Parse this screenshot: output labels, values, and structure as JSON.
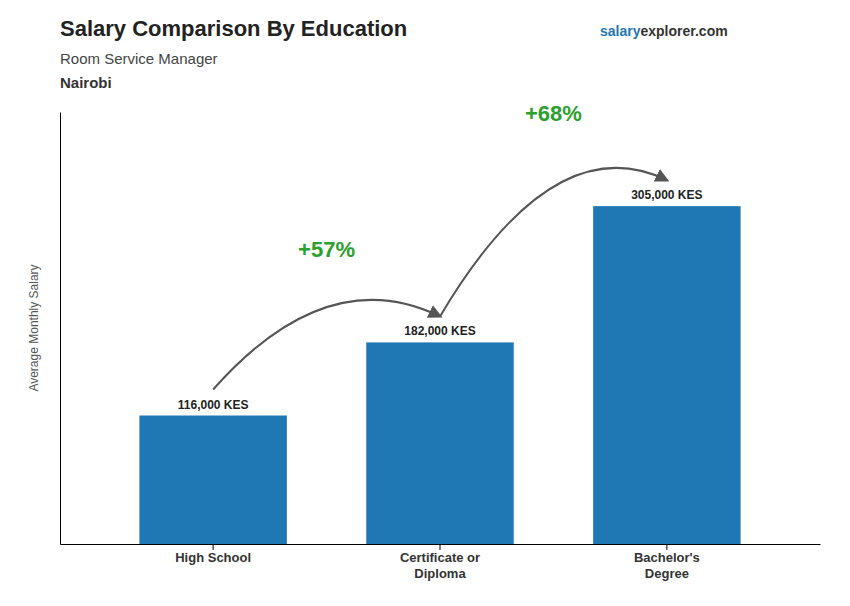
{
  "chart_data": {
    "type": "bar",
    "title": "Salary Comparison By Education",
    "subtitle": "Room Service Manager",
    "annotations": [
      "Nairobi",
      "salary",
      "explorer.com",
      "+57%",
      "+68%"
    ],
    "ylabel": "Average Monthly Salary",
    "categories": [
      "High School",
      "Certificate or\nDiploma",
      "Bachelor's\nDegree"
    ],
    "values": [
      116000,
      182000,
      305000
    ],
    "value_labels": [
      "116,000 KES",
      "182,000 KES",
      "305,000 KES"
    ],
    "data_labels": true,
    "ylim": [
      0,
      390000
    ],
    "tick_labels": "x",
    "grid": false
  }
}
